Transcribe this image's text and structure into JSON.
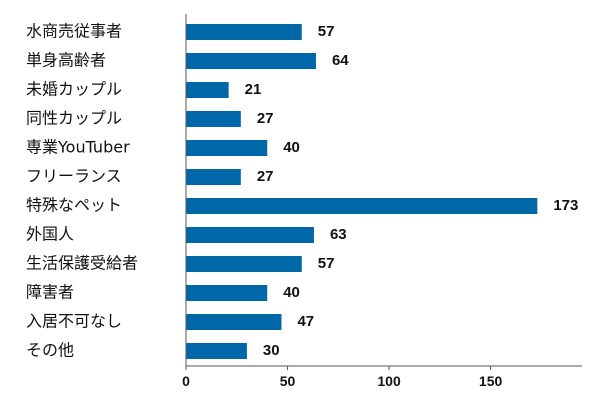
{
  "chart_data": {
    "type": "bar",
    "orientation": "horizontal",
    "categories": [
      "水商売従事者",
      "単身高齢者",
      "未婚カップル",
      "同性カップル",
      "専業YouTuber",
      "フリーランス",
      "特殊なペット",
      "外国人",
      "生活保護受給者",
      "障害者",
      "入居不可なし",
      "その他"
    ],
    "values": [
      57,
      64,
      21,
      27,
      40,
      27,
      173,
      63,
      57,
      40,
      47,
      30
    ],
    "value_labels": [
      "57",
      "64",
      "21",
      "27",
      "40",
      "27",
      "173",
      "63",
      "57",
      "40",
      "47",
      "30"
    ],
    "xlim": [
      0,
      195
    ],
    "xticks": [
      0,
      50,
      100,
      150
    ],
    "xtick_labels": [
      "0",
      "50",
      "100",
      "150"
    ],
    "title": "",
    "xlabel": "",
    "ylabel": "",
    "grid": false,
    "legend": false,
    "bar_color": "#0068a8"
  }
}
